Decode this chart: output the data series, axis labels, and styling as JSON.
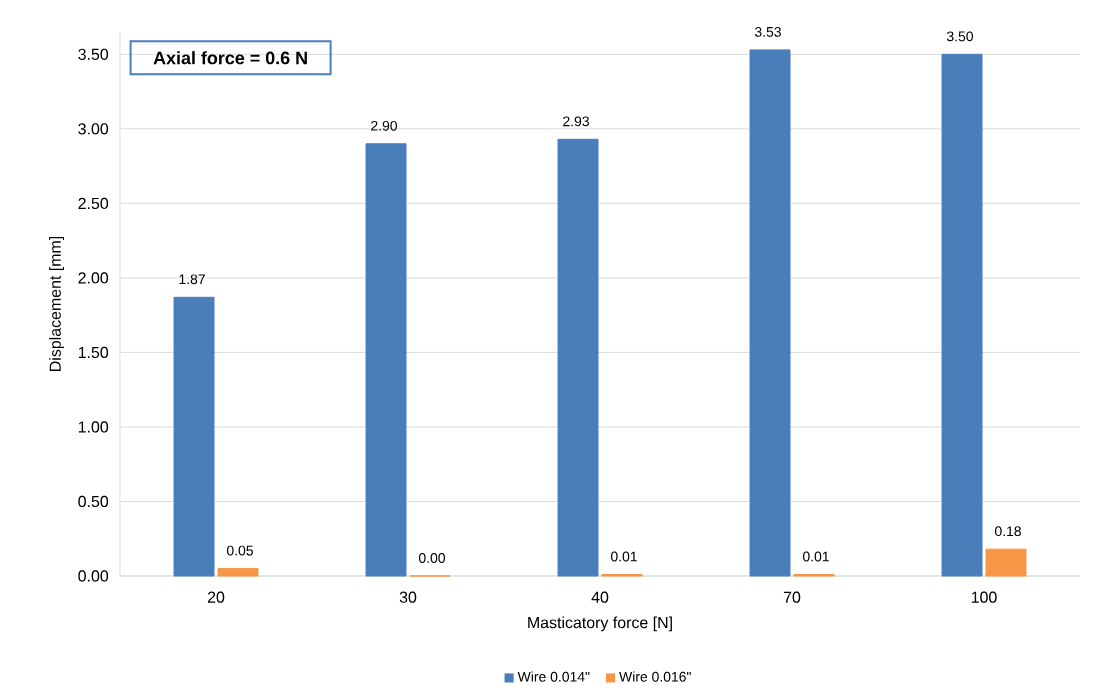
{
  "chart_data": {
    "type": "bar",
    "xlabel": "Masticatory force [N]",
    "ylabel": "Displacement [mm]",
    "categories": [
      "20",
      "30",
      "40",
      "70",
      "100"
    ],
    "series": [
      {
        "name": "Wire 0.014\"",
        "color": "#4a7ebb",
        "values": [
          1.87,
          2.9,
          2.93,
          3.53,
          3.5
        ],
        "value_labels": [
          "1.87",
          "2.90",
          "2.93",
          "3.53",
          "3.50"
        ]
      },
      {
        "name": "Wire 0.016\"",
        "color": "#f79646",
        "values": [
          0.05,
          0.0,
          0.01,
          0.01,
          0.18
        ],
        "value_labels": [
          "0.05",
          "0.00",
          "0.01",
          "0.01",
          "0.18"
        ]
      }
    ],
    "ylim": [
      0,
      3.65
    ],
    "yticks": [
      {
        "value": 0,
        "label": "0.00"
      },
      {
        "value": 0.5,
        "label": "0.50"
      },
      {
        "value": 1,
        "label": "1.00"
      },
      {
        "value": 1.5,
        "label": "1.50"
      },
      {
        "value": 2,
        "label": "2.00"
      },
      {
        "value": 2.5,
        "label": "2.50"
      },
      {
        "value": 3,
        "label": "3.00"
      },
      {
        "value": 3.5,
        "label": "3.50"
      }
    ],
    "grid": "y",
    "legend": "bottom",
    "annotations": [
      "Axial force = 0.6 N"
    ]
  }
}
